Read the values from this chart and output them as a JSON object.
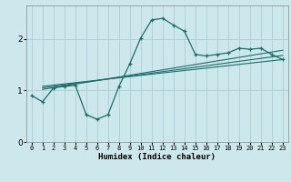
{
  "xlabel": "Humidex (Indice chaleur)",
  "ylabel": "",
  "bg_color": "#cce8ec",
  "grid_color": "#aacdd4",
  "line_color": "#1a6e6a",
  "xlim": [
    -0.5,
    23.5
  ],
  "ylim": [
    0,
    2.65
  ],
  "xticks": [
    0,
    1,
    2,
    3,
    4,
    5,
    6,
    7,
    8,
    9,
    10,
    11,
    12,
    13,
    14,
    15,
    16,
    17,
    18,
    19,
    20,
    21,
    22,
    23
  ],
  "yticks": [
    0,
    1,
    2
  ],
  "curve1_x": [
    0,
    1,
    2,
    3,
    4,
    5,
    6,
    7,
    8,
    9,
    10,
    11,
    12,
    13,
    14,
    15,
    16,
    17,
    18,
    19,
    20,
    21,
    22,
    23
  ],
  "curve1_y": [
    0.9,
    0.78,
    1.05,
    1.08,
    1.1,
    0.53,
    0.44,
    0.53,
    1.08,
    1.52,
    2.02,
    2.37,
    2.4,
    2.27,
    2.15,
    1.7,
    1.67,
    1.7,
    1.73,
    1.82,
    1.8,
    1.82,
    1.7,
    1.6
  ],
  "curve2_x": [
    1,
    23
  ],
  "curve2_y": [
    1.02,
    1.78
  ],
  "curve3_x": [
    1,
    23
  ],
  "curve3_y": [
    1.05,
    1.68
  ],
  "curve4_x": [
    1,
    23
  ],
  "curve4_y": [
    1.08,
    1.6
  ]
}
